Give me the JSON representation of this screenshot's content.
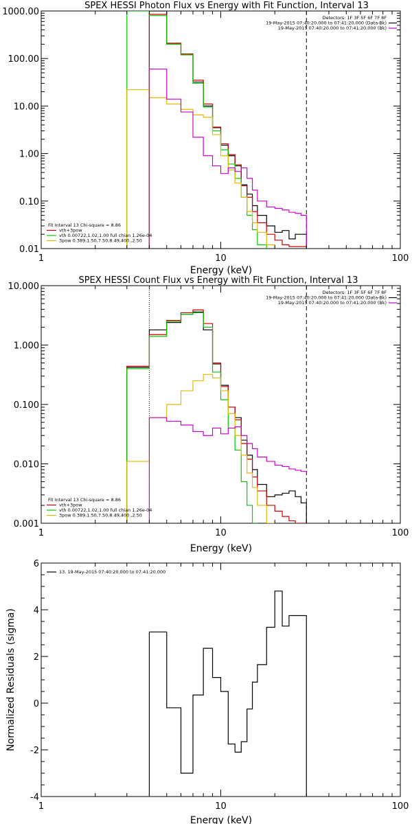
{
  "chart_data": [
    {
      "id": "photon",
      "type": "line",
      "title": "SPEX HESSI Photon Flux vs Energy with Fit Function, Interval 13",
      "xlabel": "Energy (keV)",
      "ylabel": "",
      "xscale": "log",
      "yscale": "log",
      "xlim": [
        1,
        100
      ],
      "ylim": [
        0.01,
        1000
      ],
      "xticks": [
        {
          "v": 1,
          "label": "1"
        },
        {
          "v": 10,
          "label": "10"
        },
        {
          "v": 100,
          "label": "100"
        }
      ],
      "yticks": [
        {
          "v": 0.01,
          "label": "0.01"
        },
        {
          "v": 0.1,
          "label": "0.10"
        },
        {
          "v": 1,
          "label": "1.00"
        },
        {
          "v": 10,
          "label": "10.00"
        },
        {
          "v": 100,
          "label": "100.00"
        },
        {
          "v": 1000,
          "label": "1000.00"
        }
      ],
      "dotted_vline": {
        "x": 4,
        "color": "#cc00cc"
      },
      "dashed_vline": {
        "x": 30
      },
      "info_lines": [
        "Detectors: 1F 3F 5F 6F 7F 8F",
        "19-May-2015 07:40:20.000 to 07:41:20.000 (Data-Bk)",
        "19-May-2015 07:40:20.000 to 07:41:20.000 (Bk)"
      ],
      "info_colors": [
        "",
        "#000000",
        "#cc00cc"
      ],
      "legend_lines": [
        "Fit Interval 13   Chi-square = 8.86",
        "vth+3pow",
        "vth 0.00722,1.02,1.00  full chian 1.26e-04",
        "3pow 0.389,1.50,7.50,8.49,400.,2.50"
      ],
      "legend_colors": [
        "",
        "#cc0000",
        "#00cc00",
        "#e6b800"
      ],
      "series": [
        {
          "name": "19-May-2015 07:40:20.000 to 07:41:20.000 (Data-Bk)",
          "color": "#000000",
          "edges": [
            4,
            5,
            6,
            7,
            8,
            9,
            10,
            11,
            12,
            13,
            14,
            15,
            16,
            18,
            20,
            22,
            24,
            26,
            28,
            30
          ],
          "values": [
            1000,
            200,
            120,
            32,
            10,
            3.5,
            1.5,
            0.9,
            0.55,
            0.22,
            0.14,
            0.08,
            0.05,
            0.03,
            0.022,
            0.024,
            0.016,
            0.02,
            0.02
          ]
        },
        {
          "name": "vth+3pow",
          "color": "#cc0000",
          "edges": [
            4,
            5,
            6,
            7,
            8,
            9,
            10,
            11,
            12,
            13,
            14,
            15,
            16,
            18,
            20,
            22,
            24,
            26,
            28,
            30
          ],
          "values": [
            850,
            210,
            125,
            35,
            11,
            3.6,
            1.6,
            0.95,
            0.58,
            0.21,
            0.12,
            0.06,
            0.035,
            0.02,
            0.015,
            0.012,
            0.011,
            0.011,
            0.011
          ]
        },
        {
          "name": "vth 0.00722,1.02,1.00  full chian 1.26e-04",
          "color": "#00cc00",
          "edges": [
            3,
            4,
            5,
            6,
            7,
            8,
            9,
            10,
            11,
            12,
            13,
            14,
            15,
            16,
            18
          ],
          "values": [
            1000,
            800,
            200,
            120,
            30,
            9.5,
            3,
            1.2,
            0.6,
            0.3,
            0.12,
            0.05,
            0.025,
            0.012
          ]
        },
        {
          "name": "3pow 0.389,1.50,7.50,8.49,400.,2.50",
          "color": "#e6b800",
          "edges": [
            3,
            4,
            5,
            6,
            7,
            8,
            9,
            10,
            11,
            12,
            13,
            14,
            15,
            16,
            18,
            20
          ],
          "values": [
            22,
            15,
            11,
            8.5,
            6.5,
            5.8,
            2.5,
            0.9,
            0.45,
            0.24,
            0.12,
            0.06,
            0.035,
            0.022,
            0.012
          ]
        },
        {
          "name": "19-May-2015 07:40:20.000 to 07:41:20.000 (Bk)",
          "color": "#cc00cc",
          "edges": [
            4,
            5,
            6,
            7,
            8,
            9,
            10,
            11,
            12,
            13,
            14,
            15,
            16,
            18,
            20,
            22,
            24,
            26,
            28,
            30
          ],
          "values": [
            60,
            14,
            7.5,
            2.2,
            0.9,
            0.55,
            0.38,
            0.5,
            0.42,
            0.5,
            0.3,
            0.17,
            0.1,
            0.075,
            0.07,
            0.065,
            0.058,
            0.055,
            0.05
          ]
        }
      ]
    },
    {
      "id": "count",
      "type": "line",
      "title": "SPEX HESSI Count Flux vs Energy with Fit Function, Interval 13",
      "xlabel": "Energy (keV)",
      "ylabel": "",
      "xscale": "log",
      "yscale": "log",
      "xlim": [
        1,
        100
      ],
      "ylim": [
        0.001,
        10
      ],
      "xticks": [
        {
          "v": 1,
          "label": "1"
        },
        {
          "v": 10,
          "label": "10"
        },
        {
          "v": 100,
          "label": "100"
        }
      ],
      "yticks": [
        {
          "v": 0.001,
          "label": "0.001"
        },
        {
          "v": 0.01,
          "label": "0.010"
        },
        {
          "v": 0.1,
          "label": "0.100"
        },
        {
          "v": 1,
          "label": "1.000"
        },
        {
          "v": 10,
          "label": "10.000"
        }
      ],
      "dotted_vline": {
        "x": 4,
        "color": "#000000"
      },
      "dashed_vline": {
        "x": 30
      },
      "info_lines": [
        "Detectors: 1F 3F 5F 6F 7F 8F",
        "19-May-2015 07:40:20.000 to 07:41:20.000 (Data-Bk)",
        "19-May-2015 07:40:20.000 to 07:41:20.000 (Bk)"
      ],
      "info_colors": [
        "",
        "#000000",
        "#cc00cc"
      ],
      "legend_lines": [
        "Fit Interval 13   Chi-square = 8.86",
        "vth+3pow",
        "vth 0.00722,1.02,1.00  full chian 1.26e-04",
        "3pow 0.389,1.50,7.50,8.49,400.,2.50"
      ],
      "legend_colors": [
        "",
        "#cc0000",
        "#00cc00",
        "#e6b800"
      ],
      "series": [
        {
          "name": "19-May-2015 07:40:20.000 to 07:41:20.000 (Data-Bk)",
          "color": "#000000",
          "edges": [
            3,
            4,
            5,
            6,
            7,
            8,
            9,
            10,
            11,
            12,
            13,
            14,
            15,
            16,
            18,
            20,
            22,
            24,
            26,
            28,
            30
          ],
          "values": [
            0.42,
            1.8,
            2.4,
            3.3,
            3.6,
            1.8,
            0.48,
            0.21,
            0.09,
            0.06,
            0.025,
            0.014,
            0.008,
            0.0045,
            0.0028,
            0.003,
            0.0032,
            0.0035,
            0.0028,
            0.0022
          ]
        },
        {
          "name": "vth+3pow",
          "color": "#cc0000",
          "edges": [
            3,
            4,
            5,
            6,
            7,
            8,
            9,
            10,
            11,
            12,
            13,
            14,
            15,
            16,
            18,
            20,
            22,
            24,
            26,
            28,
            30
          ],
          "values": [
            0.44,
            1.5,
            2.6,
            3.5,
            3.9,
            2.3,
            0.5,
            0.2,
            0.09,
            0.055,
            0.022,
            0.012,
            0.006,
            0.0035,
            0.002,
            0.0016,
            0.0013,
            0.0011,
            0.001,
            0.001
          ]
        },
        {
          "name": "vth 0.00722,1.02,1.00  full chian 1.26e-04",
          "color": "#00cc00",
          "edges": [
            3,
            4,
            5,
            6,
            7,
            8,
            9,
            10,
            11,
            12,
            13,
            14,
            15,
            16
          ],
          "values": [
            0.4,
            1.4,
            2.5,
            3.3,
            3.5,
            2.0,
            0.35,
            0.12,
            0.04,
            0.017,
            0.005,
            0.002,
            0.001
          ]
        },
        {
          "name": "3pow 0.389,1.50,7.50,8.49,400.,2.50",
          "color": "#e6b800",
          "edges": [
            3,
            4,
            5,
            6,
            7,
            8,
            9,
            10,
            11,
            12,
            13,
            14,
            15,
            16,
            18,
            20
          ],
          "values": [
            0.011,
            0.06,
            0.1,
            0.17,
            0.25,
            0.32,
            0.28,
            0.17,
            0.07,
            0.03,
            0.014,
            0.007,
            0.004,
            0.002,
            0.001
          ]
        },
        {
          "name": "19-May-2015 07:40:20.000 to 07:41:20.000 (Bk)",
          "color": "#cc00cc",
          "edges": [
            4,
            5,
            6,
            7,
            8,
            9,
            10,
            11,
            12,
            13,
            14,
            15,
            16,
            18,
            20,
            22,
            24,
            26,
            28,
            30
          ],
          "values": [
            0.06,
            0.052,
            0.045,
            0.035,
            0.03,
            0.04,
            0.032,
            0.04,
            0.042,
            0.03,
            0.022,
            0.018,
            0.013,
            0.011,
            0.0095,
            0.009,
            0.0082,
            0.0078,
            0.0075,
            0.007
          ]
        }
      ]
    },
    {
      "id": "resid",
      "type": "line",
      "title": "",
      "xlabel": "Energy (keV)",
      "ylabel": "Normalized Residuals (sigma)",
      "xscale": "log",
      "yscale": "linear",
      "xlim": [
        1,
        100
      ],
      "ylim": [
        -4,
        6
      ],
      "xticks": [
        {
          "v": 1,
          "label": "1"
        },
        {
          "v": 10,
          "label": "10"
        },
        {
          "v": 100,
          "label": "100"
        }
      ],
      "yticks": [
        {
          "v": -4,
          "label": "-4"
        },
        {
          "v": -2,
          "label": "-2"
        },
        {
          "v": 0,
          "label": "0"
        },
        {
          "v": 2,
          "label": "2"
        },
        {
          "v": 4,
          "label": "4"
        },
        {
          "v": 6,
          "label": "6"
        }
      ],
      "legend_lines": [
        "13. 19-May-2015 07:40:20.000 to 07:41:20.000"
      ],
      "legend_colors": [
        "#000000"
      ],
      "series": [
        {
          "name": "13. 19-May-2015 07:40:20.000 to 07:41:20.000",
          "color": "#000000",
          "edges": [
            4,
            5,
            6,
            7,
            8,
            9,
            10,
            11,
            12,
            13,
            14,
            15,
            16,
            18,
            20,
            22,
            24,
            26,
            28,
            30
          ],
          "values": [
            3.05,
            -0.2,
            -3.0,
            0.35,
            2.35,
            1.1,
            0.5,
            -1.75,
            -2.1,
            -1.65,
            -0.25,
            0.9,
            1.65,
            3.25,
            4.8,
            3.3,
            3.75,
            3.75,
            3.75
          ],
          "drop_to_bottom": true
        }
      ]
    }
  ]
}
